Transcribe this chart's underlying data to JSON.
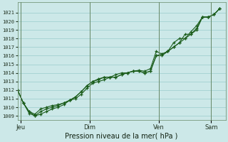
{
  "xlabel": "Pression niveau de la mer( hPa )",
  "bg_color": "#cce8e8",
  "grid_color": "#99cccc",
  "line_color": "#1a5c1a",
  "ylim": [
    1008.5,
    1022.2
  ],
  "yticks": [
    1009,
    1010,
    1011,
    1012,
    1013,
    1014,
    1015,
    1016,
    1017,
    1018,
    1019,
    1020,
    1021
  ],
  "day_labels": [
    "Jeu",
    "Dim",
    "Ven",
    "Sam"
  ],
  "day_positions": [
    0.5,
    12.5,
    24.5,
    33.5
  ],
  "xlim": [
    0,
    36
  ],
  "series1_x": [
    0,
    1,
    2,
    3,
    4,
    5,
    6,
    7,
    8,
    9,
    10,
    11,
    12,
    13,
    14,
    15,
    16,
    17,
    18,
    19,
    20,
    21,
    22,
    23,
    24,
    25,
    26,
    27,
    28,
    29,
    30,
    31,
    32,
    33,
    34,
    35
  ],
  "series1_y": [
    1012.0,
    1010.5,
    1009.5,
    1009.2,
    1009.8,
    1010.0,
    1010.2,
    1010.3,
    1010.5,
    1010.8,
    1011.2,
    1011.8,
    1012.5,
    1013.0,
    1013.2,
    1013.5,
    1013.5,
    1013.5,
    1013.8,
    1014.0,
    1014.2,
    1014.2,
    1014.0,
    1014.2,
    1016.0,
    1016.2,
    1016.5,
    1017.0,
    1017.5,
    1018.0,
    1018.5,
    1019.2,
    1020.5,
    1020.5,
    1020.8,
    1021.5
  ],
  "series2_x": [
    0,
    1,
    2,
    3,
    4,
    5,
    6,
    7,
    8,
    9,
    10,
    11,
    12,
    13,
    14,
    15,
    16,
    17,
    18,
    19,
    20,
    21,
    22,
    23,
    24,
    25,
    26,
    27,
    28,
    29,
    30,
    31,
    32,
    33,
    34,
    35
  ],
  "series2_y": [
    1012.0,
    1010.5,
    1009.5,
    1009.0,
    1009.5,
    1009.8,
    1010.0,
    1010.2,
    1010.5,
    1010.8,
    1011.2,
    1011.8,
    1012.5,
    1013.0,
    1013.3,
    1013.5,
    1013.5,
    1013.8,
    1014.0,
    1014.0,
    1014.2,
    1014.3,
    1014.2,
    1014.5,
    1016.5,
    1016.2,
    1016.5,
    1017.5,
    1018.0,
    1018.0,
    1018.8,
    1019.5,
    1020.5,
    1020.5,
    1020.8,
    1021.5
  ],
  "series3_x": [
    0,
    1,
    2,
    3,
    4,
    5,
    6,
    7,
    8,
    9,
    10,
    11,
    12,
    13,
    14,
    15,
    16,
    17,
    18,
    19,
    20,
    21,
    22,
    23,
    24,
    25,
    26,
    27,
    28,
    29,
    30,
    31,
    32,
    33,
    34,
    35
  ],
  "series3_y": [
    1012.0,
    1010.5,
    1009.3,
    1009.0,
    1009.2,
    1009.5,
    1009.8,
    1010.0,
    1010.3,
    1010.8,
    1011.0,
    1011.5,
    1012.2,
    1012.8,
    1013.0,
    1013.2,
    1013.5,
    1013.5,
    1013.8,
    1014.0,
    1014.2,
    1014.2,
    1014.0,
    1014.2,
    1016.0,
    1016.0,
    1016.5,
    1017.0,
    1017.5,
    1018.5,
    1018.5,
    1019.0,
    1020.5,
    1020.5,
    1020.8,
    1021.5
  ]
}
